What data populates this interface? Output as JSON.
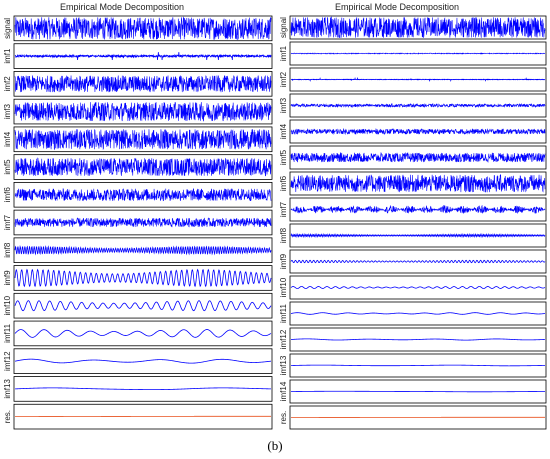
{
  "caption": "(b)",
  "chart_data": [
    {
      "type": "line",
      "title": "Empirical Mode Decomposition",
      "rows": [
        {
          "label": "signal",
          "amp": 1.0,
          "cycles": 0,
          "style": "noise",
          "color": "#0000ff"
        },
        {
          "label": "imf1",
          "amp": 0.35,
          "cycles": 0,
          "style": "sparse",
          "color": "#0000ff"
        },
        {
          "label": "imf2",
          "amp": 0.75,
          "cycles": 0,
          "style": "noise",
          "color": "#0000ff"
        },
        {
          "label": "imf3",
          "amp": 0.85,
          "cycles": 0,
          "style": "noise",
          "color": "#0000ff"
        },
        {
          "label": "imf4",
          "amp": 0.9,
          "cycles": 0,
          "style": "noise",
          "color": "#0000ff"
        },
        {
          "label": "imf5",
          "amp": 0.8,
          "cycles": 0,
          "style": "noise",
          "color": "#0000ff"
        },
        {
          "label": "imf6",
          "amp": 0.55,
          "cycles": 0,
          "style": "noise",
          "color": "#0000ff"
        },
        {
          "label": "imf7",
          "amp": 0.4,
          "cycles": 0,
          "style": "noise",
          "color": "#0000ff"
        },
        {
          "label": "imf8",
          "amp": 0.35,
          "cycles": 110,
          "style": "wave",
          "color": "#0000ff"
        },
        {
          "label": "imf9",
          "amp": 0.75,
          "cycles": 48,
          "style": "wave",
          "color": "#0000ff"
        },
        {
          "label": "imf10",
          "amp": 0.45,
          "cycles": 24,
          "style": "wave",
          "color": "#0000ff"
        },
        {
          "label": "imf11",
          "amp": 0.35,
          "cycles": 11,
          "style": "wave",
          "color": "#0000ff"
        },
        {
          "label": "imf12",
          "amp": 0.18,
          "cycles": 4,
          "style": "wave",
          "color": "#0000ff"
        },
        {
          "label": "imf13",
          "amp": 0.1,
          "cycles": 1.5,
          "style": "wave",
          "color": "#0000ff"
        },
        {
          "label": "res.",
          "amp": 0.03,
          "cycles": 0.5,
          "style": "residual",
          "color": "#e8501e"
        }
      ]
    },
    {
      "type": "line",
      "title": "Empirical Mode Decomposition",
      "rows": [
        {
          "label": "signal",
          "amp": 1.0,
          "cycles": 0,
          "style": "noise",
          "color": "#0000ff"
        },
        {
          "label": "imf1",
          "amp": 0.04,
          "cycles": 0,
          "style": "noise",
          "color": "#0000ff"
        },
        {
          "label": "imf2",
          "amp": 0.1,
          "cycles": 0,
          "style": "sparse",
          "color": "#0000ff"
        },
        {
          "label": "imf3",
          "amp": 0.15,
          "cycles": 0,
          "style": "noise",
          "color": "#0000ff"
        },
        {
          "label": "imf4",
          "amp": 0.25,
          "cycles": 0,
          "style": "noise",
          "color": "#0000ff"
        },
        {
          "label": "imf5",
          "amp": 0.45,
          "cycles": 0,
          "style": "noise",
          "color": "#0000ff"
        },
        {
          "label": "imf6",
          "amp": 0.85,
          "cycles": 0,
          "style": "noise",
          "color": "#0000ff"
        },
        {
          "label": "imf7",
          "amp": 0.4,
          "cycles": 0,
          "style": "bursts",
          "color": "#0000ff"
        },
        {
          "label": "imf8",
          "amp": 0.12,
          "cycles": 160,
          "style": "wave",
          "color": "#0000ff"
        },
        {
          "label": "imf9",
          "amp": 0.12,
          "cycles": 70,
          "style": "wave",
          "color": "#0000ff"
        },
        {
          "label": "imf10",
          "amp": 0.1,
          "cycles": 30,
          "style": "wave",
          "color": "#0000ff"
        },
        {
          "label": "imf11",
          "amp": 0.08,
          "cycles": 10,
          "style": "wave",
          "color": "#0000ff"
        },
        {
          "label": "imf12",
          "amp": 0.06,
          "cycles": 4,
          "style": "wave",
          "color": "#0000ff"
        },
        {
          "label": "imf13",
          "amp": 0.04,
          "cycles": 2,
          "style": "wave",
          "color": "#0000ff"
        },
        {
          "label": "imf14",
          "amp": 0.03,
          "cycles": 1,
          "style": "wave",
          "color": "#0000ff"
        },
        {
          "label": "res.",
          "amp": 0.02,
          "cycles": 0.5,
          "style": "residual",
          "color": "#e8501e"
        }
      ]
    }
  ]
}
